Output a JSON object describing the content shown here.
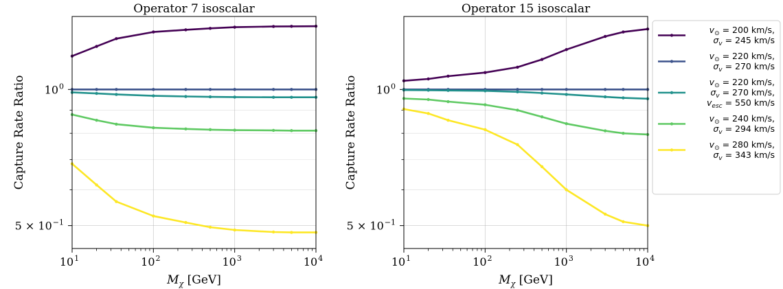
{
  "chart_data": [
    {
      "type": "line",
      "title": "Operator 7 isoscalar",
      "xlabel": "M_χ [GeV]",
      "ylabel": "Capture Rate Ratio",
      "xscale": "log",
      "yscale": "log",
      "xlim": [
        10,
        10000
      ],
      "ylim": [
        0.445,
        1.45
      ],
      "grid": true,
      "x_ticks": [
        {
          "value": 10,
          "base": "10",
          "exp": "1"
        },
        {
          "value": 100,
          "base": "10",
          "exp": "2"
        },
        {
          "value": 1000,
          "base": "10",
          "exp": "3"
        },
        {
          "value": 10000,
          "base": "10",
          "exp": "4"
        }
      ],
      "y_ticks": [
        {
          "value": 1.0,
          "label": "10",
          "exp": "0"
        },
        {
          "value": 0.5,
          "label": "5 × 10",
          "exp": "−1"
        }
      ],
      "x": [
        10,
        20,
        35,
        100,
        250,
        500,
        1000,
        3000,
        5000,
        10000
      ],
      "series": [
        {
          "values": [
            1.185,
            1.245,
            1.295,
            1.34,
            1.355,
            1.365,
            1.373,
            1.378,
            1.379,
            1.38
          ]
        },
        {
          "values": [
            1.0,
            1.0,
            1.0,
            1.0,
            1.0,
            1.0,
            1.0,
            1.0,
            1.0,
            1.0
          ]
        },
        {
          "values": [
            0.985,
            0.98,
            0.975,
            0.968,
            0.965,
            0.963,
            0.962,
            0.961,
            0.961,
            0.961
          ]
        },
        {
          "values": [
            0.88,
            0.855,
            0.838,
            0.823,
            0.818,
            0.815,
            0.813,
            0.812,
            0.811,
            0.811
          ]
        },
        {
          "values": [
            0.685,
            0.615,
            0.565,
            0.525,
            0.508,
            0.496,
            0.489,
            0.484,
            0.483,
            0.483
          ]
        }
      ]
    },
    {
      "type": "line",
      "title": "Operator 15 isoscalar",
      "xlabel": "M_χ [GeV]",
      "ylabel": "Capture Rate Ratio",
      "xscale": "log",
      "yscale": "log",
      "xlim": [
        10,
        10000
      ],
      "ylim": [
        0.445,
        1.45
      ],
      "grid": true,
      "x_ticks": [
        {
          "value": 10,
          "base": "10",
          "exp": "1"
        },
        {
          "value": 100,
          "base": "10",
          "exp": "2"
        },
        {
          "value": 1000,
          "base": "10",
          "exp": "3"
        },
        {
          "value": 10000,
          "base": "10",
          "exp": "4"
        }
      ],
      "y_ticks": [
        {
          "value": 1.0,
          "label": "10",
          "exp": "0"
        },
        {
          "value": 0.5,
          "label": "5 × 10",
          "exp": "−1"
        }
      ],
      "x": [
        10,
        20,
        35,
        100,
        250,
        500,
        1000,
        3000,
        5000,
        10000
      ],
      "series": [
        {
          "values": [
            1.045,
            1.055,
            1.07,
            1.09,
            1.12,
            1.165,
            1.225,
            1.31,
            1.34,
            1.36
          ]
        },
        {
          "values": [
            1.0,
            1.0,
            1.0,
            1.0,
            1.0,
            1.0,
            1.0,
            1.0,
            1.0,
            1.0
          ]
        },
        {
          "values": [
            0.997,
            0.996,
            0.995,
            0.993,
            0.988,
            0.982,
            0.975,
            0.963,
            0.958,
            0.954
          ]
        },
        {
          "values": [
            0.955,
            0.95,
            0.94,
            0.925,
            0.9,
            0.87,
            0.84,
            0.81,
            0.8,
            0.795
          ]
        },
        {
          "values": [
            0.905,
            0.885,
            0.855,
            0.815,
            0.755,
            0.675,
            0.6,
            0.53,
            0.51,
            0.5
          ]
        }
      ]
    }
  ],
  "legend": {
    "placement": "right",
    "entries": [
      {
        "color": "#440154",
        "lines": [
          "v⊙ = 200 km/s,",
          "σv = 245 km/s"
        ]
      },
      {
        "color": "#3b528b",
        "lines": [
          "v⊙ = 220 km/s,",
          "σv = 270 km/s"
        ]
      },
      {
        "color": "#21918c",
        "lines": [
          "v⊙ = 220 km/s,",
          "σv = 270 km/s,",
          "vesc = 550 km/s"
        ]
      },
      {
        "color": "#5ec962",
        "lines": [
          "v⊙ = 240 km/s,",
          "σv = 294 km/s"
        ]
      },
      {
        "color": "#fde725",
        "lines": [
          "v⊙ = 280 km/s,",
          "σv = 343 km/s"
        ]
      }
    ]
  },
  "colors": {
    "series": [
      "#440154",
      "#3b528b",
      "#21918c",
      "#5ec962",
      "#fde725"
    ]
  }
}
